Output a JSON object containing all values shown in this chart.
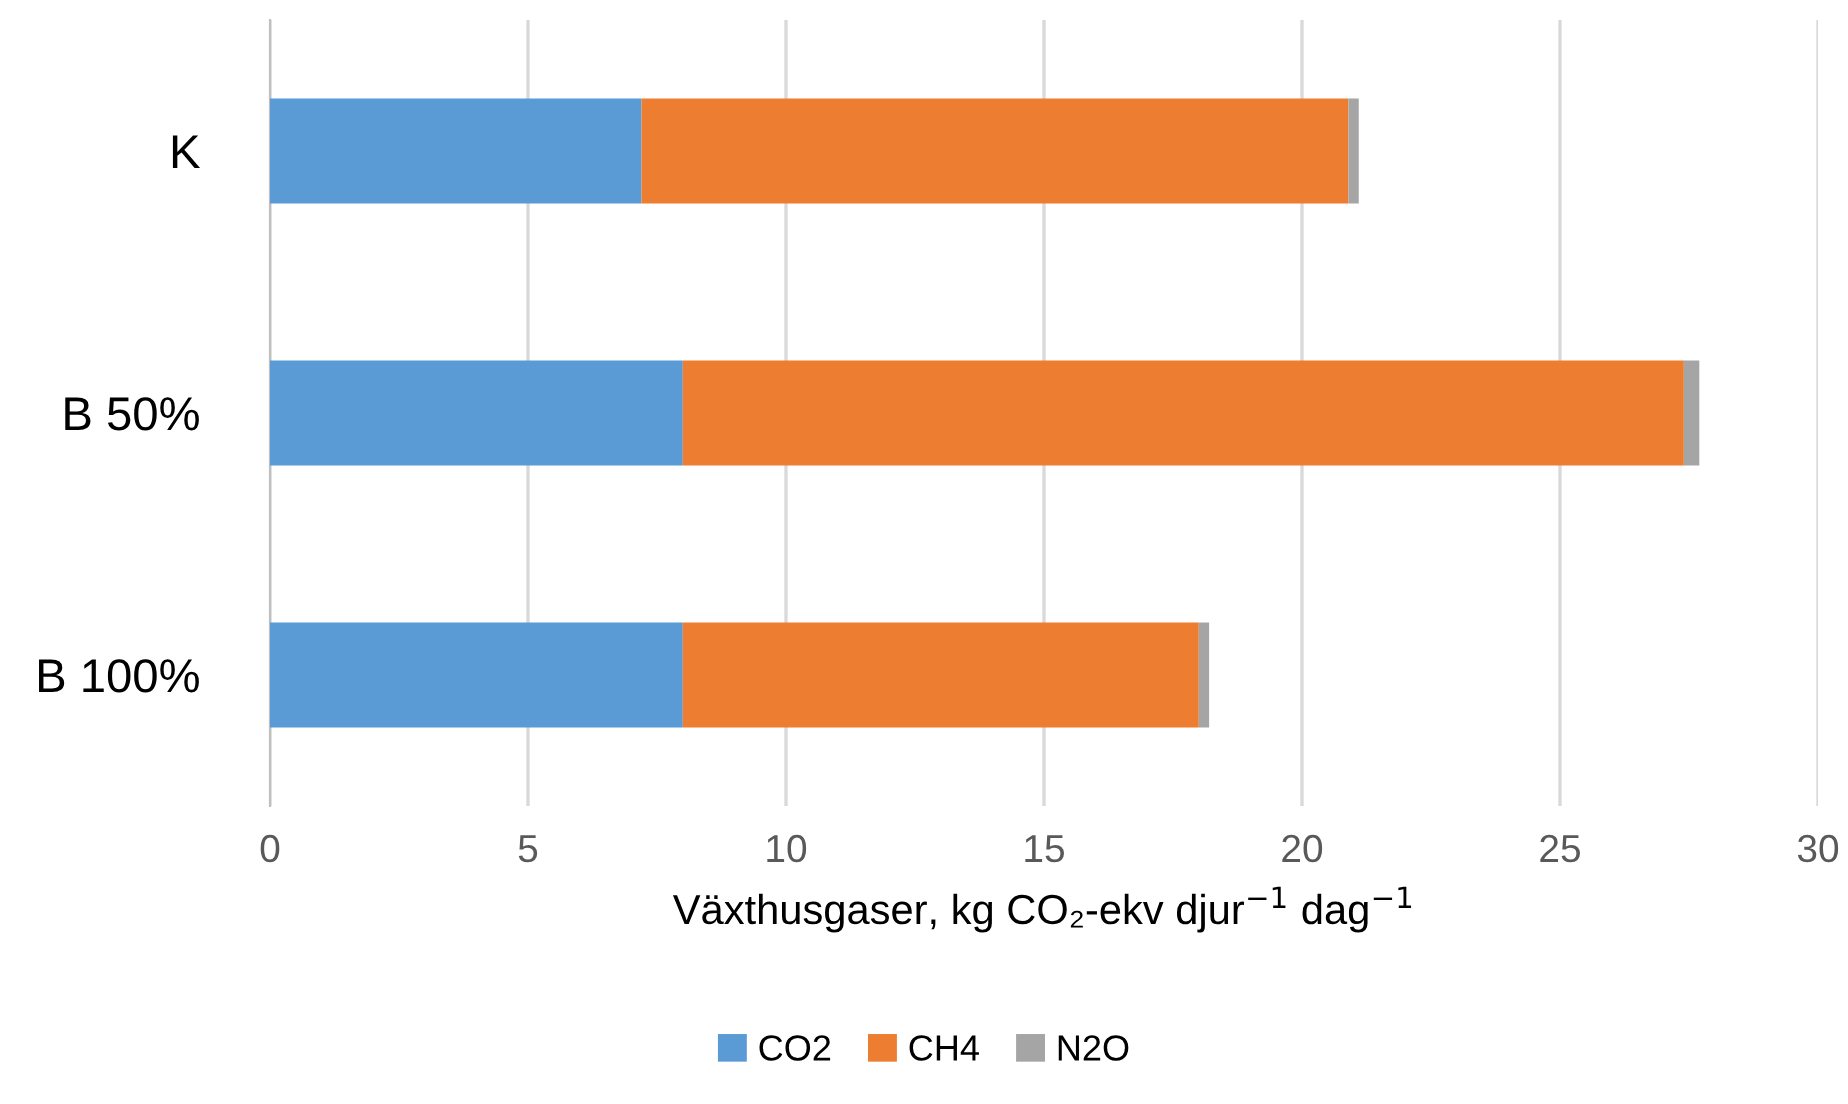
{
  "chart_data": {
    "type": "bar",
    "orientation": "horizontal",
    "stacked": true,
    "categories": [
      "K",
      "B 50%",
      "B 100%"
    ],
    "series": [
      {
        "name": "CO2",
        "color": "#5b9bd5",
        "values": [
          7.2,
          8.0,
          8.0
        ]
      },
      {
        "name": "CH4",
        "color": "#ed7d31",
        "values": [
          13.7,
          19.4,
          10.0
        ]
      },
      {
        "name": "N2O",
        "color": "#a5a5a5",
        "values": [
          0.2,
          0.3,
          0.2
        ]
      }
    ],
    "xlabel": "Växthusgaser, kg CO₂-ekv djur$^{−1}$ dag$^{−1}$",
    "xlim": [
      0,
      30
    ],
    "xticks": [
      0,
      5,
      10,
      15,
      20,
      25,
      30
    ],
    "grid": "x",
    "legend": "bottom"
  }
}
